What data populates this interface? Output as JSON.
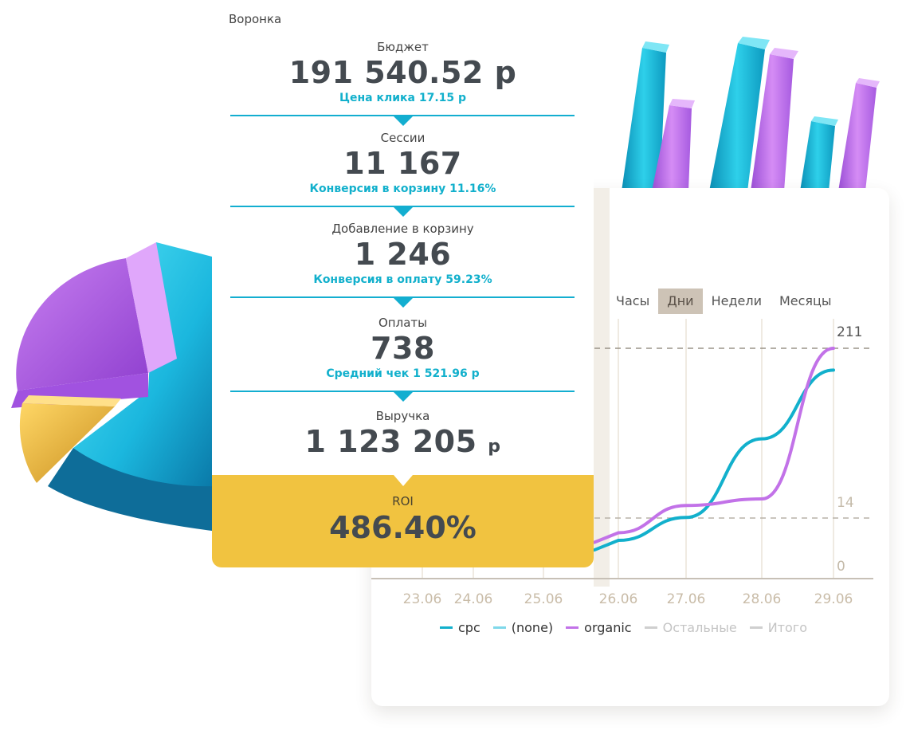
{
  "funnel": {
    "title": "Воронка",
    "stages": [
      {
        "label": "Бюджет",
        "value": "191 540.52 р",
        "sub": "Цена клика  17.15 р"
      },
      {
        "label": "Сессии",
        "value": "11 167",
        "sub": "Конверсия в корзину 11.16%"
      },
      {
        "label": "Добавление в корзину",
        "value": "1 246",
        "sub": "Конверсия в оплату 59.23%"
      },
      {
        "label": "Оплаты",
        "value": "738",
        "sub": "Средний чек  1 521.96 р"
      },
      {
        "label": "Выручка",
        "value": "1 123 205",
        "currency": "р"
      }
    ],
    "roi": {
      "label": "ROI",
      "value": "486.40%"
    }
  },
  "period_tabs": [
    {
      "label": "Часы",
      "active": false
    },
    {
      "label": "Дни",
      "active": true
    },
    {
      "label": "Недели",
      "active": false
    },
    {
      "label": "Месяцы",
      "active": false
    }
  ],
  "colors": {
    "accent": "#13aed0",
    "roi": "#f1c340",
    "cpc": "#12b0cc",
    "none": "#7fd8ea",
    "organic": "#c272e8",
    "muted": "#cfcfcf"
  },
  "chart_data": {
    "type": "line",
    "x": [
      "23.06",
      "24.06",
      "25.06",
      "26.06",
      "27.06",
      "28.06",
      "29.06"
    ],
    "y_ticks": [
      "211",
      "14",
      "0"
    ],
    "reference_lines": [
      211,
      14
    ],
    "series": [
      {
        "name": "cpc",
        "values": [
          null,
          null,
          null,
          35,
          56,
          128,
          191
        ]
      },
      {
        "name": "organic",
        "values": [
          null,
          null,
          null,
          42,
          67,
          73,
          211
        ]
      }
    ],
    "legend": [
      {
        "name": "cpc",
        "color": "#12b0cc",
        "muted": false
      },
      {
        "name": "(none)",
        "color": "#7fd8ea",
        "muted": false
      },
      {
        "name": "organic",
        "color": "#c272e8",
        "muted": false
      },
      {
        "name": "Остальные",
        "color": "#cfcfcf",
        "muted": true
      },
      {
        "name": "Итого",
        "color": "#cfcfcf",
        "muted": true
      }
    ],
    "legend_position": "bottom"
  }
}
